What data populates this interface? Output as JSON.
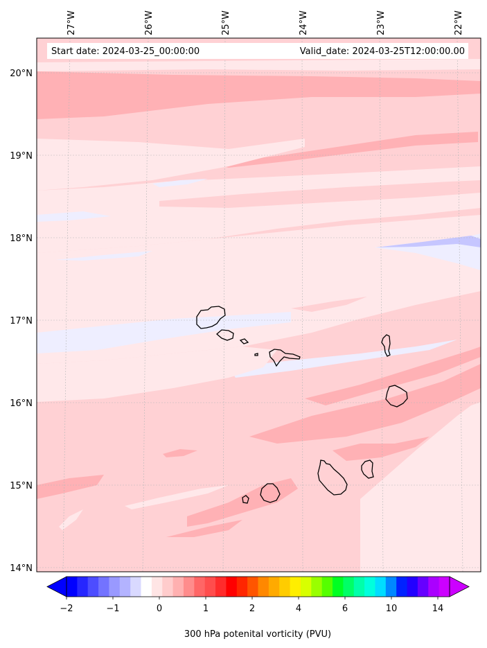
{
  "header": {
    "start_date": "Start date: 2024-03-25_00:00:00",
    "valid_date": "Valid_date: 2024-03-25T12:00:00.00"
  },
  "longitude_labels": [
    "27°W",
    "26°W",
    "25°W",
    "24°W",
    "23°W",
    "22°W"
  ],
  "latitude_labels": [
    "20°N",
    "19°N",
    "18°N",
    "17°N",
    "16°N",
    "15°N",
    "14°N"
  ],
  "colorbar": {
    "tick_labels": [
      "−2",
      "−1",
      "0",
      "1",
      "2",
      "4",
      "6",
      "10",
      "14"
    ],
    "label": "300 hPa potenital vorticity (PVU)",
    "colors": [
      "#0000ff",
      "#2626ff",
      "#4d4dff",
      "#7373ff",
      "#9999ff",
      "#b3b3ff",
      "#d9d9ff",
      "#ffffff",
      "#ffe5e5",
      "#ffcccc",
      "#ffb0b0",
      "#ff8c8c",
      "#ff6666",
      "#ff4d4d",
      "#ff2b2b",
      "#ff0000",
      "#ff2600",
      "#ff5500",
      "#ff8800",
      "#ffaa00",
      "#ffcc00",
      "#ffee00",
      "#d8ff00",
      "#99ff00",
      "#55ff00",
      "#00ff22",
      "#00ff66",
      "#00ffaa",
      "#00ffdd",
      "#00ddff",
      "#0088ff",
      "#0022ff",
      "#2200ff",
      "#6600ff",
      "#aa00ff",
      "#cc00ff"
    ]
  },
  "legend_colors": {
    "pv_very_light": "#ffe8ea",
    "pv_light": "#ffd1d4",
    "pv_medium": "#ffb1b5",
    "pv_negative": "#eeeeff",
    "pv_negative_strong": "#c6c6ff",
    "coastline": "#000000"
  }
}
